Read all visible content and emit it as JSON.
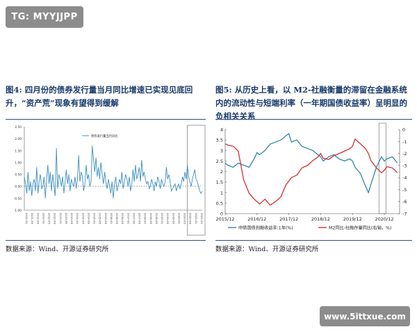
{
  "header": {
    "badge": "TG: MYYJJPP"
  },
  "figures": [
    {
      "caption": "图4:  四月份的债券发行量当月同比增速已实现见底回升，“资产荒”现象有望得到缓解",
      "source": "数据来源：Wind、开源证券研究所"
    },
    {
      "caption": "图5:  从历史上看，以 M2-社融衡量的滞留在金融系统内的流动性与短端利率（一年期国债收益率）呈明显的负相关关系",
      "source": "数据来源：Wind、开源证券研究所"
    }
  ],
  "footer": {
    "watermark": "www.5ittxue.com"
  },
  "chart_data": [
    {
      "type": "line",
      "legend": [
        "债券发行量当月同比"
      ],
      "legend_position": "top-center",
      "yticks": [
        "2.50",
        "2.00",
        "1.50",
        "1.00",
        "0.50",
        "0.00",
        "-0.50",
        "-1.00"
      ],
      "ylim": [
        -1.0,
        2.5
      ],
      "xticks": [
        "2011-01",
        "2011-05",
        "2011-09",
        "2012-01",
        "2012-05",
        "2012-09",
        "2013-01",
        "2013-05",
        "2013-09",
        "2014-01",
        "2014-05",
        "2014-09",
        "2015-01",
        "2015-05",
        "2015-09",
        "2016-01",
        "2016-05",
        "2016-09",
        "2017-01",
        "2017-05",
        "2017-09",
        "2018-01",
        "2018-05",
        "2018-09",
        "2019-01",
        "2019-05",
        "2019-09",
        "2020-01",
        "2020-05",
        "2020-09",
        "2021-01",
        "2021-04"
      ],
      "values": [
        0.4,
        0.1,
        -0.3,
        0.6,
        -0.2,
        0.2,
        -0.4,
        0.1,
        0.3,
        -0.2,
        0.8,
        -0.3,
        0.2,
        0.5,
        -0.1,
        0.0,
        0.4,
        -0.5,
        0.3,
        0.9,
        0.1,
        0.6,
        -0.2,
        0.5,
        0.0,
        -0.4,
        1.6,
        -0.1,
        0.5,
        0.3,
        0.0,
        0.4,
        -0.3,
        0.2,
        0.7,
        0.1,
        0.5,
        -0.2,
        0.3,
        0.1,
        0.0,
        0.4,
        -0.1,
        0.3,
        1.3,
        0.2,
        0.6,
        0.4,
        -0.2,
        0.1,
        0.9,
        0.3,
        0.5,
        0.0,
        0.2,
        1.7,
        1.1,
        0.6,
        1.2,
        0.4,
        0.8,
        0.3,
        1.0,
        0.5,
        0.1,
        0.6,
        0.2,
        -0.1,
        0.3,
        0.0,
        -0.3,
        0.2,
        -0.5,
        0.1,
        0.4,
        -0.2,
        0.0,
        0.3,
        0.1,
        0.6,
        -0.1,
        0.2,
        0.5,
        0.3,
        0.0,
        0.4,
        -0.2,
        0.1,
        0.7,
        0.2,
        0.9,
        0.3,
        0.5,
        0.8,
        0.2,
        1.1,
        0.4,
        0.6,
        0.3,
        0.1,
        0.2,
        -0.1,
        0.0,
        0.3,
        0.1,
        -0.2,
        0.2,
        0.0,
        0.4,
        0.2,
        -0.1,
        0.3,
        0.1,
        0.0,
        0.2,
        0.8,
        0.3,
        0.5,
        0.2,
        -0.2,
        -0.1,
        0.0,
        0.1,
        -0.2,
        0.0,
        0.1,
        -0.1,
        0.1,
        0.4,
        0.2,
        0.6,
        0.3,
        0.9,
        0.4,
        0.2,
        0.0,
        0.3,
        0.5,
        0.7,
        0.3,
        0.2,
        0.0,
        -0.2,
        -0.3,
        -0.2
      ],
      "highlight_range": [
        "2020-06",
        "2021-04"
      ]
    },
    {
      "type": "line",
      "series": [
        {
          "name": "中债国债到期收益率:1年(%)",
          "axis": "left",
          "color": "#2e86ab"
        },
        {
          "name": "M2同比-社融存量同比(右轴，%)",
          "axis": "right",
          "color": "#d62f2f"
        }
      ],
      "xticks": [
        "2015/12",
        "2016/12",
        "2017/12",
        "2018/12",
        "2019/12",
        "2020/12"
      ],
      "left_yticks": [
        "4",
        "3.5",
        "3",
        "2.5",
        "2",
        "1.5",
        "1",
        "0.5",
        "0"
      ],
      "left_ylim": [
        0,
        4
      ],
      "right_yticks": [
        "0",
        "-1",
        "-2",
        "-3",
        "-4",
        "-5",
        "-6",
        "-7"
      ],
      "right_ylim": [
        -7,
        0
      ],
      "x": [
        2015.92,
        2016.0,
        2016.17,
        2016.33,
        2016.5,
        2016.67,
        2016.83,
        2016.92,
        2017.0,
        2017.17,
        2017.33,
        2017.5,
        2017.67,
        2017.83,
        2017.92,
        2018.0,
        2018.17,
        2018.33,
        2018.5,
        2018.67,
        2018.83,
        2018.92,
        2019.0,
        2019.17,
        2019.33,
        2019.5,
        2019.67,
        2019.83,
        2019.92,
        2020.0,
        2020.17,
        2020.33,
        2020.42,
        2020.5,
        2020.67,
        2020.83,
        2020.92,
        2021.0,
        2021.17,
        2021.33
      ],
      "series_values": [
        [
          2.4,
          2.3,
          2.2,
          2.4,
          2.3,
          2.2,
          2.6,
          2.9,
          2.8,
          3.0,
          3.3,
          3.4,
          3.5,
          3.7,
          3.8,
          3.4,
          3.5,
          3.2,
          3.1,
          3.0,
          2.8,
          2.7,
          2.5,
          2.7,
          2.8,
          2.6,
          2.5,
          2.6,
          2.5,
          2.2,
          1.9,
          1.3,
          1.0,
          1.4,
          2.2,
          2.7,
          2.5,
          2.6,
          2.7,
          2.4
        ],
        [
          -1.2,
          -1.3,
          -1.4,
          -1.8,
          -4.2,
          -5.3,
          -5.8,
          -6.0,
          -6.2,
          -5.8,
          -6.3,
          -6.0,
          -5.6,
          -4.6,
          -4.3,
          -4.0,
          -3.8,
          -3.2,
          -3.0,
          -2.6,
          -2.3,
          -2.0,
          -2.4,
          -2.5,
          -2.2,
          -2.0,
          -1.8,
          -1.6,
          -1.4,
          -0.8,
          -1.2,
          -1.6,
          -2.0,
          -2.6,
          -3.2,
          -3.6,
          -3.4,
          -3.1,
          -3.2,
          -3.6
        ]
      ],
      "highlight_range": [
        2020.75,
        2020.97
      ]
    }
  ]
}
